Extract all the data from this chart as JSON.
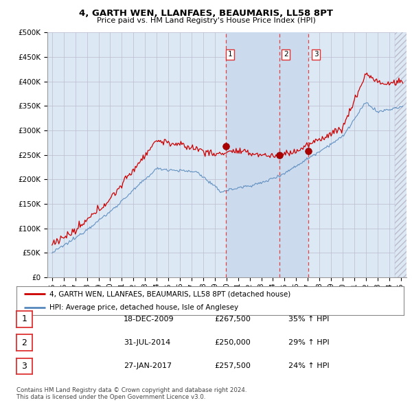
{
  "title": "4, GARTH WEN, LLANFAES, BEAUMARIS, LL58 8PT",
  "subtitle": "Price paid vs. HM Land Registry's House Price Index (HPI)",
  "ylabel_ticks": [
    "£0",
    "£50K",
    "£100K",
    "£150K",
    "£200K",
    "£250K",
    "£300K",
    "£350K",
    "£400K",
    "£450K",
    "£500K"
  ],
  "ytick_values": [
    0,
    50000,
    100000,
    150000,
    200000,
    250000,
    300000,
    350000,
    400000,
    450000,
    500000
  ],
  "ylim": [
    0,
    500000
  ],
  "xlim_start": 1994.6,
  "xlim_end": 2025.5,
  "sale_dates": [
    2009.96,
    2014.58,
    2017.07
  ],
  "sale_prices": [
    267500,
    250000,
    257500
  ],
  "sale_labels": [
    "1",
    "2",
    "3"
  ],
  "legend_line1": "4, GARTH WEN, LLANFAES, BEAUMARIS, LL58 8PT (detached house)",
  "legend_line2": "HPI: Average price, detached house, Isle of Anglesey",
  "table_rows": [
    {
      "num": "1",
      "date": "18-DEC-2009",
      "price": "£267,500",
      "hpi": "35% ↑ HPI"
    },
    {
      "num": "2",
      "date": "31-JUL-2014",
      "price": "£250,000",
      "hpi": "29% ↑ HPI"
    },
    {
      "num": "3",
      "date": "27-JAN-2017",
      "price": "£257,500",
      "hpi": "24% ↑ HPI"
    }
  ],
  "footer": "Contains HM Land Registry data © Crown copyright and database right 2024.\nThis data is licensed under the Open Government Licence v3.0.",
  "red_color": "#cc0000",
  "blue_color": "#5588bb",
  "dashed_color": "#dd3333",
  "background_color": "#dde8f5",
  "shade_color": "#ccdaee",
  "grid_color": "#bbbbcc",
  "hatch_color": "#bbbbcc"
}
